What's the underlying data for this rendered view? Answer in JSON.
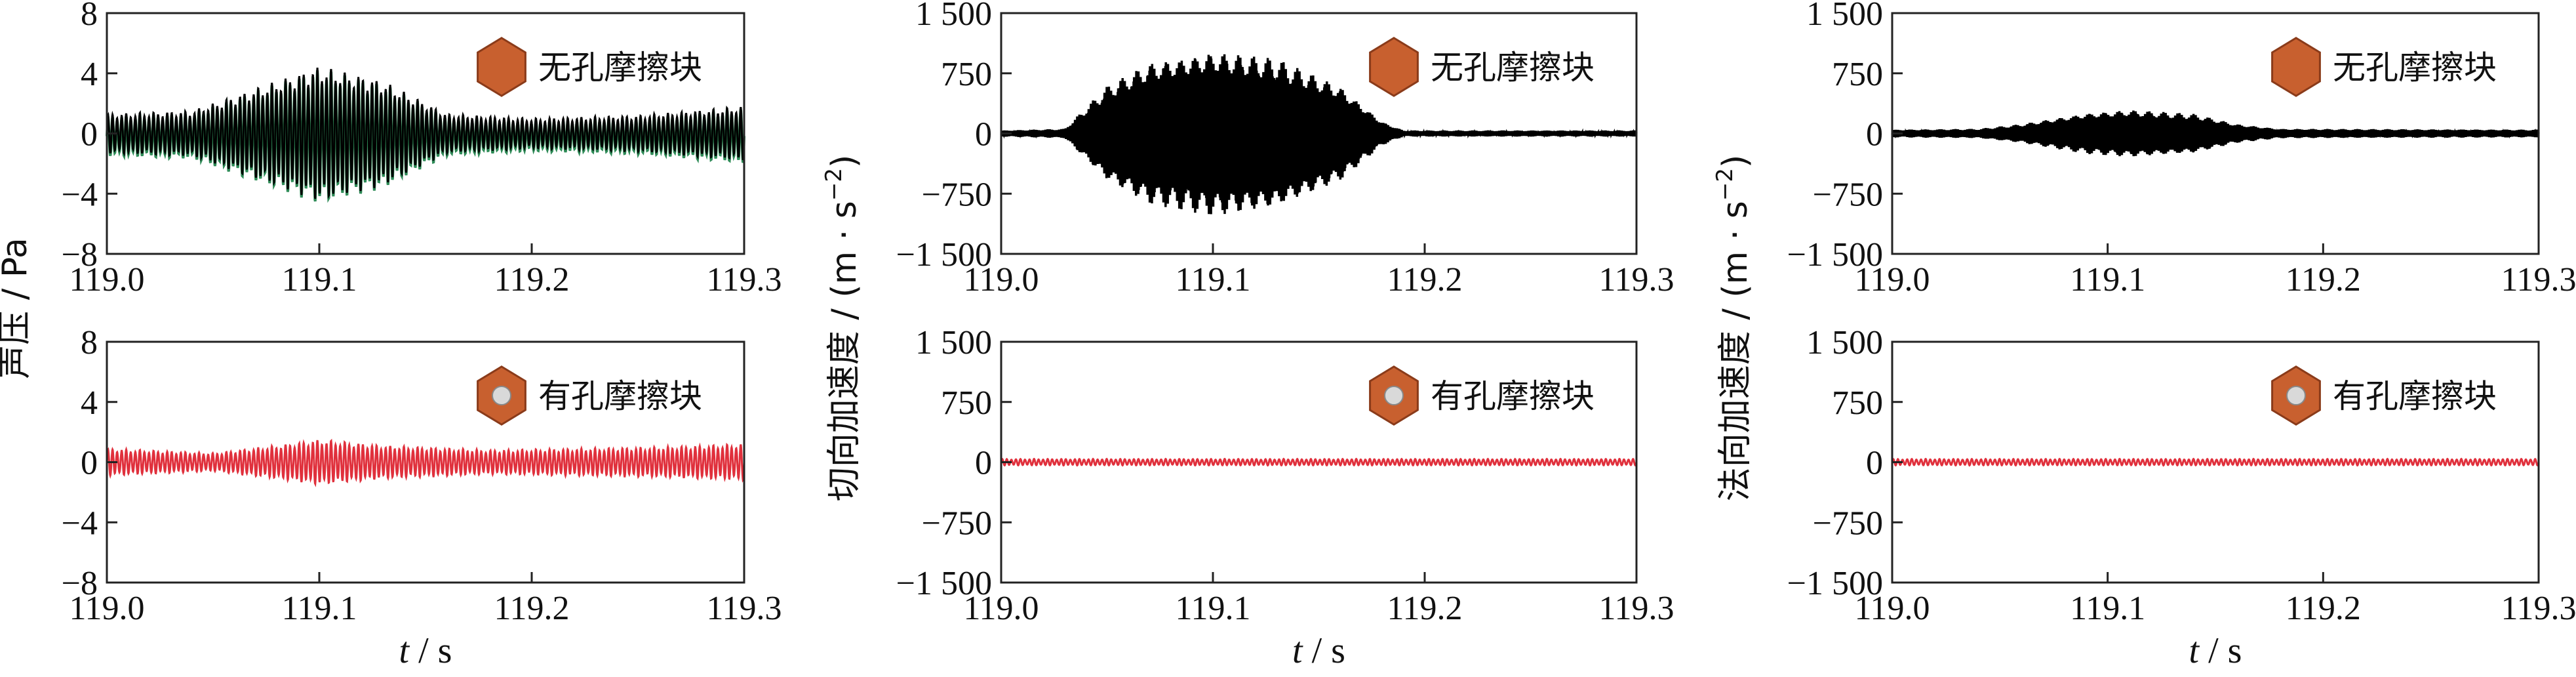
{
  "chart_data": [
    {
      "type": "line",
      "panel": "sound-pressure-no-hole",
      "ylabel": "声压 / Pa",
      "ylim": [
        -8,
        8
      ],
      "yticks": [
        -8,
        -4,
        0,
        4,
        8
      ],
      "ytick_labels": [
        "−8",
        "−4",
        "0",
        "4",
        "8"
      ],
      "xlim": [
        119.0,
        119.3
      ],
      "xticks": [
        "119.0",
        "119.1",
        "119.2",
        "119.3"
      ],
      "xlabel": "",
      "legend": {
        "label": "无孔摩擦块",
        "marker": "pad-no-hole",
        "placement": "top-right"
      },
      "series": [
        {
          "color": "#000000",
          "baseline": 1.2,
          "envelope": [
            [
              119.0,
              1.3
            ],
            [
              119.04,
              1.5
            ],
            [
              119.07,
              3.0
            ],
            [
              119.1,
              4.5
            ],
            [
              119.13,
              3.5
            ],
            [
              119.16,
              1.3
            ],
            [
              119.2,
              1.0
            ],
            [
              119.25,
              1.2
            ],
            [
              119.3,
              1.8
            ]
          ],
          "secondary_color": "#2e8b57"
        }
      ]
    },
    {
      "type": "line",
      "panel": "tangential-accel-no-hole",
      "ylabel": "",
      "ylim": [
        -1500,
        1500
      ],
      "yticks": [
        -1500,
        -750,
        0,
        750,
        1500
      ],
      "ytick_labels": [
        "−1 500",
        "−750",
        "0",
        "750",
        "1 500"
      ],
      "xlim": [
        119.0,
        119.3
      ],
      "xticks": [
        "119.0",
        "119.1",
        "119.2",
        "119.3"
      ],
      "xlabel": "",
      "legend": {
        "label": "无孔摩擦块",
        "marker": "pad-no-hole",
        "placement": "top-right"
      },
      "series": [
        {
          "color": "#000000",
          "envelope": [
            [
              119.0,
              40
            ],
            [
              119.03,
              60
            ],
            [
              119.05,
              600
            ],
            [
              119.07,
              900
            ],
            [
              119.1,
              1050
            ],
            [
              119.13,
              950
            ],
            [
              119.16,
              600
            ],
            [
              119.18,
              150
            ],
            [
              119.19,
              40
            ],
            [
              119.3,
              40
            ]
          ]
        }
      ]
    },
    {
      "type": "line",
      "panel": "normal-accel-no-hole",
      "ylabel": "",
      "ylim": [
        -1500,
        1500
      ],
      "yticks": [
        -1500,
        -750,
        0,
        750,
        1500
      ],
      "ytick_labels": [
        "−1 500",
        "−750",
        "0",
        "750",
        "1 500"
      ],
      "xlim": [
        119.0,
        119.3
      ],
      "xticks": [
        "119.0",
        "119.1",
        "119.2",
        "119.3"
      ],
      "xlabel": "",
      "legend": {
        "label": "无孔摩擦块",
        "marker": "pad-no-hole",
        "placement": "top-right"
      },
      "series": [
        {
          "color": "#000000",
          "envelope": [
            [
              119.0,
              50
            ],
            [
              119.04,
              60
            ],
            [
              119.06,
              120
            ],
            [
              119.09,
              260
            ],
            [
              119.11,
              300
            ],
            [
              119.14,
              250
            ],
            [
              119.16,
              120
            ],
            [
              119.18,
              60
            ],
            [
              119.3,
              50
            ]
          ]
        }
      ]
    },
    {
      "type": "line",
      "panel": "sound-pressure-hole",
      "ylabel": "",
      "ylim": [
        -8,
        8
      ],
      "yticks": [
        -8,
        -4,
        0,
        4,
        8
      ],
      "ytick_labels": [
        "−8",
        "−4",
        "0",
        "4",
        "8"
      ],
      "xlim": [
        119.0,
        119.3
      ],
      "xticks": [
        "119.0",
        "119.1",
        "119.2",
        "119.3"
      ],
      "xlabel": "t / s",
      "legend": {
        "label": "有孔摩擦块",
        "marker": "pad-with-hole",
        "placement": "top-right"
      },
      "series": [
        {
          "color": "#e0303c",
          "envelope": [
            [
              119.0,
              0.9
            ],
            [
              119.05,
              0.6
            ],
            [
              119.08,
              1.1
            ],
            [
              119.1,
              1.5
            ],
            [
              119.13,
              1.1
            ],
            [
              119.18,
              0.8
            ],
            [
              119.22,
              0.9
            ],
            [
              119.26,
              1.0
            ],
            [
              119.3,
              1.2
            ]
          ]
        }
      ]
    },
    {
      "type": "line",
      "panel": "tangential-accel-hole",
      "ylabel": "切向加速度 / (m · s",
      "ylabel_superscript": "−2",
      "ylabel_suffix": ")",
      "ylim": [
        -1500,
        1500
      ],
      "yticks": [
        -1500,
        -750,
        0,
        750,
        1500
      ],
      "ytick_labels": [
        "−1 500",
        "−750",
        "0",
        "750",
        "1 500"
      ],
      "xlim": [
        119.0,
        119.3
      ],
      "xticks": [
        "119.0",
        "119.1",
        "119.2",
        "119.3"
      ],
      "xlabel": "t / s",
      "legend": {
        "label": "有孔摩擦块",
        "marker": "pad-with-hole",
        "placement": "top-right"
      },
      "series": [
        {
          "color": "#e0303c",
          "envelope": [
            [
              119.0,
              40
            ],
            [
              119.3,
              40
            ]
          ]
        }
      ]
    },
    {
      "type": "line",
      "panel": "normal-accel-hole",
      "ylabel": "法向加速度 / (m · s",
      "ylabel_superscript": "−2",
      "ylabel_suffix": ")",
      "ylim": [
        -1500,
        1500
      ],
      "yticks": [
        -1500,
        -750,
        0,
        750,
        1500
      ],
      "ytick_labels": [
        "−1 500",
        "−750",
        "0",
        "750",
        "1 500"
      ],
      "xlim": [
        119.0,
        119.3
      ],
      "xticks": [
        "119.0",
        "119.1",
        "119.2",
        "119.3"
      ],
      "xlabel": "t / s",
      "legend": {
        "label": "有孔摩擦块",
        "marker": "pad-with-hole",
        "placement": "top-right"
      },
      "series": [
        {
          "color": "#e0303c",
          "envelope": [
            [
              119.0,
              40
            ],
            [
              119.3,
              40
            ]
          ]
        }
      ]
    }
  ],
  "colors": {
    "pad": "#c8602f",
    "pad_edge": "#8a3b1a",
    "hole_fill": "#d9d9d9",
    "axis": "#222222"
  }
}
